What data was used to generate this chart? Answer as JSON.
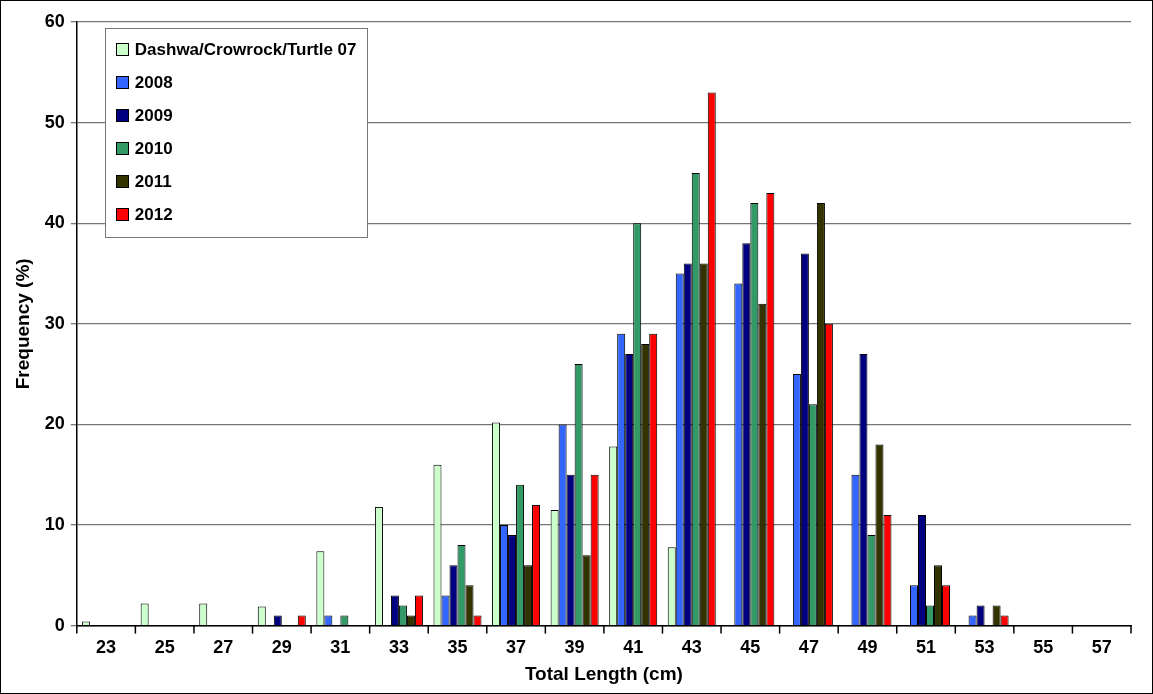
{
  "chart_data": {
    "type": "bar",
    "xlabel": "Total Length (cm)",
    "ylabel": "Frequency (%)",
    "categories": [
      "23",
      "25",
      "27",
      "29",
      "31",
      "33",
      "35",
      "37",
      "39",
      "41",
      "43",
      "45",
      "47",
      "49",
      "51",
      "53",
      "55",
      "57"
    ],
    "series": [
      {
        "name": "Dashwa/Crowrock/Turtle 07",
        "color": "#ccffcc",
        "values": [
          0.4,
          2.2,
          2.2,
          1.9,
          7.4,
          11.8,
          16,
          20.2,
          11.5,
          17.8,
          7.8,
          0,
          0,
          0,
          0,
          0,
          0,
          0
        ]
      },
      {
        "name": "2008",
        "color": "#3366ff",
        "values": [
          0,
          0,
          0,
          0,
          1,
          0,
          3,
          10,
          20,
          29,
          35,
          34,
          25,
          15,
          4,
          1,
          0,
          0
        ]
      },
      {
        "name": "2009",
        "color": "#000080",
        "values": [
          0,
          0,
          0,
          1,
          0,
          3,
          6,
          9,
          15,
          27,
          36,
          38,
          37,
          27,
          11,
          2,
          0,
          0
        ]
      },
      {
        "name": "2010",
        "color": "#339966",
        "values": [
          0,
          0,
          0,
          0,
          1,
          2,
          8,
          14,
          26,
          40,
          45,
          42,
          22,
          9,
          2,
          0,
          0,
          0
        ]
      },
      {
        "name": "2011",
        "color": "#333300",
        "values": [
          0,
          0,
          0,
          0,
          0,
          1,
          4,
          6,
          7,
          28,
          36,
          32,
          42,
          18,
          6,
          2,
          0,
          0
        ]
      },
      {
        "name": "2012",
        "color": "#ff0000",
        "values": [
          0,
          0,
          0,
          1,
          0,
          3,
          1,
          12,
          15,
          29,
          53,
          43,
          30,
          11,
          4,
          1,
          0,
          0
        ]
      }
    ],
    "ylim": [
      0,
      60
    ],
    "yticks": [
      0,
      10,
      20,
      30,
      40,
      50,
      60
    ],
    "grid": "y",
    "legend": "top left"
  }
}
